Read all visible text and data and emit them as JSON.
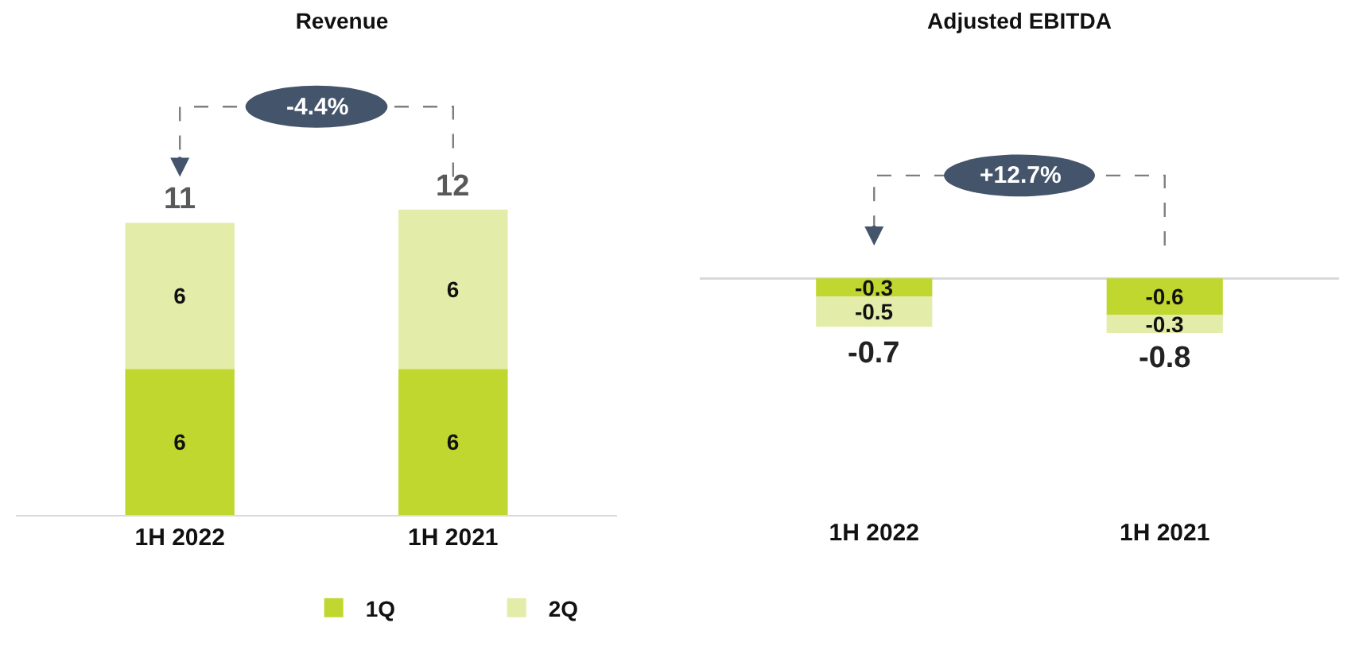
{
  "chart_data": [
    {
      "type": "bar",
      "title": "Revenue",
      "categories": [
        "1H 2022",
        "1H 2021"
      ],
      "stacked": true,
      "legend": "bottom",
      "annotations": [
        "-4.4%"
      ],
      "totals": [
        "11",
        "12"
      ],
      "series": [
        {
          "name": "1Q",
          "color": "#c0d72f",
          "values": [
            5.5,
            5.5
          ],
          "value_labels": [
            "6",
            "6"
          ]
        },
        {
          "name": "2Q",
          "color": "#e3eda9",
          "values": [
            5.5,
            6.0
          ],
          "value_labels": [
            "6",
            "6"
          ]
        }
      ]
    },
    {
      "type": "bar",
      "title": "Adjusted EBITDA",
      "categories": [
        "1H 2022",
        "1H 2021"
      ],
      "stacked": true,
      "annotations": [
        "+12.7%"
      ],
      "totals": [
        "-0.7",
        "-0.8"
      ],
      "series": [
        {
          "color": "#c0d72f",
          "values": [
            -0.3,
            -0.6
          ],
          "value_labels": [
            "-0.3",
            "-0.6"
          ]
        },
        {
          "color": "#e3eda9",
          "values": [
            -0.5,
            -0.3
          ],
          "value_labels": [
            "-0.5",
            "-0.3"
          ]
        }
      ]
    }
  ]
}
